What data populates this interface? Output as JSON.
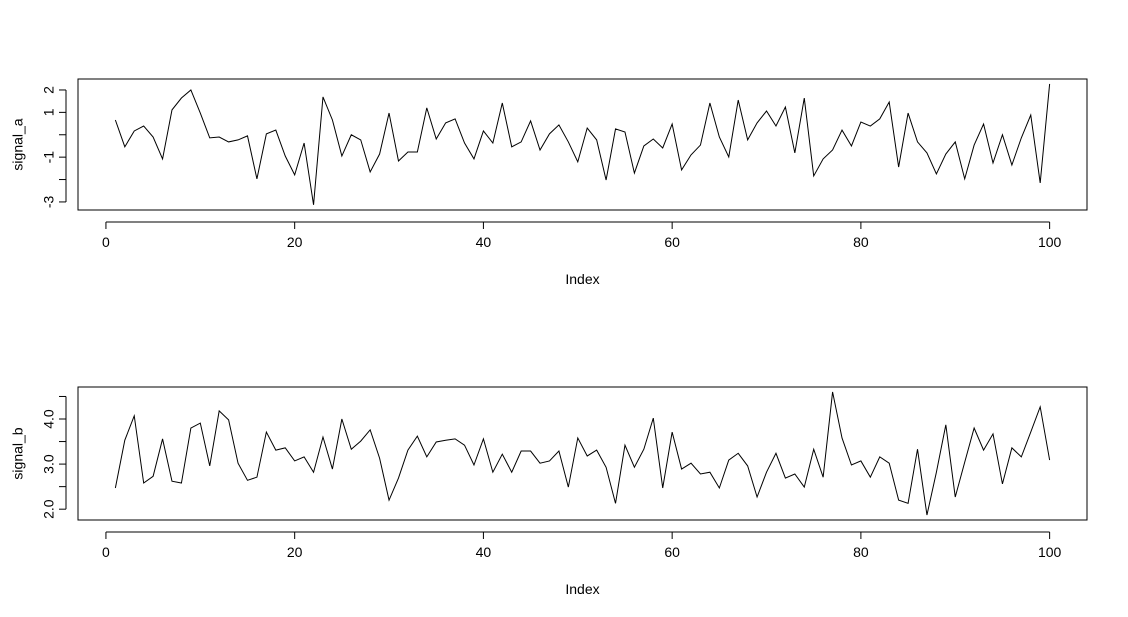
{
  "chart_data": [
    {
      "type": "line",
      "xlabel": "Index",
      "ylabel": "signal_a",
      "color": "#000000",
      "x": [
        1,
        2,
        3,
        4,
        5,
        6,
        7,
        8,
        9,
        10,
        11,
        12,
        13,
        14,
        15,
        16,
        17,
        18,
        19,
        20,
        21,
        22,
        23,
        24,
        25,
        26,
        27,
        28,
        29,
        30,
        31,
        32,
        33,
        34,
        35,
        36,
        37,
        38,
        39,
        40,
        41,
        42,
        43,
        44,
        45,
        46,
        47,
        48,
        49,
        50,
        51,
        52,
        53,
        54,
        55,
        56,
        57,
        58,
        59,
        60,
        61,
        62,
        63,
        64,
        65,
        66,
        67,
        68,
        69,
        70,
        71,
        72,
        73,
        74,
        75,
        76,
        77,
        78,
        79,
        80,
        81,
        82,
        83,
        84,
        85,
        86,
        87,
        88,
        89,
        90,
        91,
        92,
        93,
        94,
        95,
        96,
        97,
        98,
        99,
        100
      ],
      "values": [
        0.66,
        -0.54,
        0.17,
        0.39,
        -0.1,
        -1.08,
        1.11,
        1.64,
        2.0,
        0.97,
        -0.14,
        -0.1,
        -0.32,
        -0.23,
        -0.05,
        -1.97,
        0.04,
        0.21,
        -0.95,
        -1.79,
        -0.37,
        -3.13,
        1.69,
        0.66,
        -0.95,
        0.0,
        -0.23,
        -1.66,
        -0.86,
        0.97,
        -1.17,
        -0.77,
        -0.77,
        1.2,
        -0.19,
        0.53,
        0.71,
        -0.37,
        -1.08,
        0.17,
        -0.37,
        1.42,
        -0.54,
        -0.32,
        0.62,
        -0.68,
        0.04,
        0.44,
        -0.32,
        -1.21,
        0.3,
        -0.23,
        -2.02,
        0.26,
        0.12,
        -1.71,
        -0.5,
        -0.19,
        -0.59,
        0.48,
        -1.57,
        -0.9,
        -0.46,
        1.42,
        -0.1,
        -0.99,
        1.55,
        -0.23,
        0.53,
        1.06,
        0.39,
        1.24,
        -0.81,
        1.64,
        -1.84,
        -1.08,
        -0.68,
        0.21,
        -0.5,
        0.57,
        0.39,
        0.71,
        1.46,
        -1.44,
        0.97,
        -0.32,
        -0.81,
        -1.75,
        -0.86,
        -0.32,
        -1.97,
        -0.46,
        0.48,
        -1.26,
        0.0,
        -1.35,
        -0.14,
        0.88,
        -2.15,
        2.27
      ],
      "xlim": [
        -2.96,
        103.96
      ],
      "xticks": [
        0,
        20,
        40,
        60,
        80,
        100
      ],
      "ylim": [
        -3.36,
        2.49
      ],
      "yticks": [
        -3,
        -1,
        1,
        2
      ],
      "yminor": [
        -2,
        0
      ]
    },
    {
      "type": "line",
      "xlabel": "Index",
      "ylabel": "signal_b",
      "color": "#000000",
      "x": [
        1,
        2,
        3,
        4,
        5,
        6,
        7,
        8,
        9,
        10,
        11,
        12,
        13,
        14,
        15,
        16,
        17,
        18,
        19,
        20,
        21,
        22,
        23,
        24,
        25,
        26,
        27,
        28,
        29,
        30,
        31,
        32,
        33,
        34,
        35,
        36,
        37,
        38,
        39,
        40,
        41,
        42,
        43,
        44,
        45,
        46,
        47,
        48,
        49,
        50,
        51,
        52,
        53,
        54,
        55,
        56,
        57,
        58,
        59,
        60,
        61,
        62,
        63,
        64,
        65,
        66,
        67,
        68,
        69,
        70,
        71,
        72,
        73,
        74,
        75,
        76,
        77,
        78,
        79,
        80,
        81,
        82,
        83,
        84,
        85,
        86,
        87,
        88,
        89,
        90,
        91,
        92,
        93,
        94,
        95,
        96,
        97,
        98,
        99,
        100
      ],
      "values": [
        2.47,
        3.53,
        4.07,
        2.58,
        2.73,
        3.56,
        2.62,
        2.58,
        3.8,
        3.91,
        2.96,
        4.18,
        3.98,
        3.02,
        2.64,
        2.71,
        3.71,
        3.31,
        3.36,
        3.07,
        3.16,
        2.82,
        3.6,
        2.89,
        4.0,
        3.33,
        3.51,
        3.76,
        3.13,
        2.2,
        2.69,
        3.31,
        3.62,
        3.16,
        3.49,
        3.53,
        3.56,
        3.42,
        2.98,
        3.56,
        2.82,
        3.22,
        2.82,
        3.29,
        3.29,
        3.02,
        3.07,
        3.29,
        2.49,
        3.58,
        3.18,
        3.31,
        2.93,
        2.13,
        3.42,
        2.93,
        3.33,
        4.02,
        2.47,
        3.71,
        2.89,
        3.02,
        2.78,
        2.82,
        2.47,
        3.09,
        3.24,
        2.96,
        2.27,
        2.82,
        3.24,
        2.69,
        2.78,
        2.49,
        3.33,
        2.71,
        4.6,
        3.58,
        2.98,
        3.07,
        2.71,
        3.16,
        3.02,
        2.2,
        2.13,
        3.33,
        1.87,
        2.82,
        3.87,
        2.27,
        3.04,
        3.8,
        3.31,
        3.67,
        2.56,
        3.36,
        3.16,
        3.71,
        4.27,
        3.09
      ],
      "xlim": [
        -2.96,
        103.96
      ],
      "xticks": [
        0,
        20,
        40,
        60,
        80,
        100
      ],
      "ylim": [
        1.76,
        4.71
      ],
      "yticks": [
        {
          "value": 2,
          "label": "2.0"
        },
        {
          "value": 3,
          "label": "3.0"
        },
        {
          "value": 4,
          "label": "4.0"
        }
      ],
      "yminor": [
        2.5,
        3.5,
        4.5
      ]
    }
  ]
}
